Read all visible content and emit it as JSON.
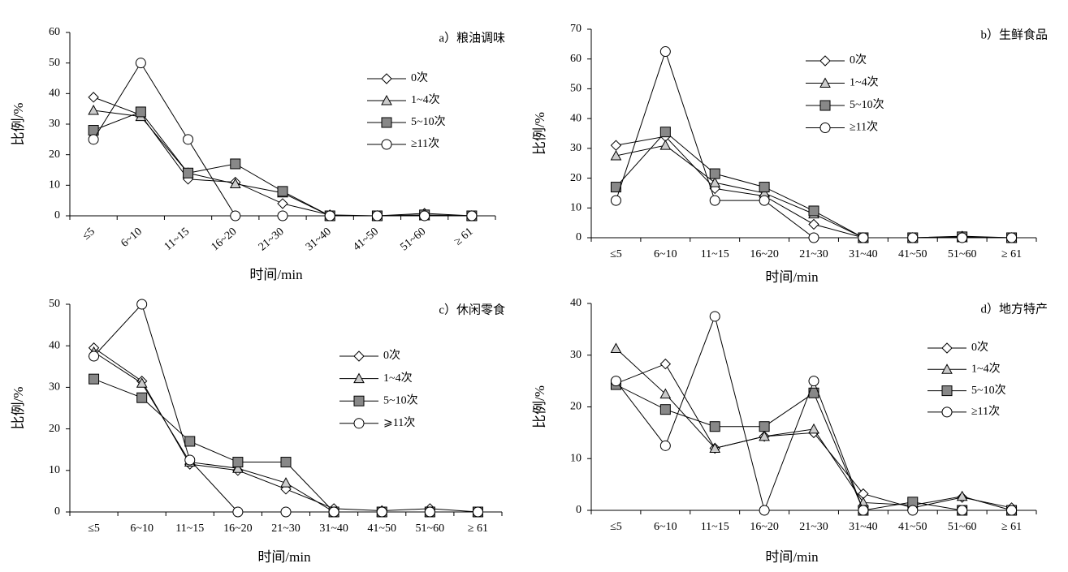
{
  "chart_data": [
    {
      "type": "line",
      "title": "a）粮油调味",
      "x_label": "时间/min",
      "y_label": "比例/%",
      "categories": [
        "≤5",
        "6~10",
        "11~15",
        "16~20",
        "21~30",
        "31~40",
        "41~50",
        "51~60",
        "≥ 61"
      ],
      "ylim": [
        0,
        60
      ],
      "yticks": [
        0,
        10,
        20,
        30,
        40,
        50,
        60
      ],
      "series": [
        {
          "name": "0次",
          "color": "#ffffff",
          "values": [
            38.8,
            33,
            12,
            11,
            4,
            0.3,
            0,
            0.8,
            0
          ]
        },
        {
          "name": "1~4次",
          "color": "#cccccc",
          "values": [
            34.5,
            32.5,
            14,
            10.5,
            7.5,
            0,
            0,
            0,
            0
          ]
        },
        {
          "name": "5~10次",
          "color": "#888888",
          "values": [
            28,
            34,
            14,
            17,
            8,
            0,
            0,
            0.3,
            0
          ]
        },
        {
          "name": "≥11次",
          "color": "#ffffff",
          "values": [
            25,
            50,
            25,
            0,
            0,
            0,
            0,
            0,
            0
          ]
        }
      ]
    },
    {
      "type": "line",
      "title": "b）生鲜食品",
      "x_label": "时间/min",
      "y_label": "比例/%",
      "categories": [
        "≤5",
        "6~10",
        "11~15",
        "16~20",
        "21~30",
        "31~40",
        "41~50",
        "51~60",
        "≥ 61"
      ],
      "ylim": [
        0,
        70
      ],
      "yticks": [
        0,
        10,
        20,
        30,
        40,
        50,
        60,
        70
      ],
      "series": [
        {
          "name": "0次",
          "color": "#ffffff",
          "values": [
            31,
            34,
            16.5,
            14,
            4.5,
            0,
            0,
            0.5,
            0
          ]
        },
        {
          "name": "1~4次",
          "color": "#cccccc",
          "values": [
            27.5,
            31,
            18.5,
            15,
            8,
            0,
            0,
            0,
            0
          ]
        },
        {
          "name": "5~10次",
          "color": "#888888",
          "values": [
            17,
            35.5,
            21.5,
            17,
            9,
            0,
            0,
            0.3,
            0
          ]
        },
        {
          "name": "≥11次",
          "color": "#ffffff",
          "values": [
            12.5,
            62.5,
            12.5,
            12.5,
            0,
            0,
            0,
            0,
            0
          ]
        }
      ]
    },
    {
      "type": "line",
      "title": "c）休闲零食",
      "x_label": "时间/min",
      "y_label": "比例/%",
      "categories": [
        "≤5",
        "6~10",
        "11~15",
        "16~20",
        "21~30",
        "31~40",
        "41~50",
        "51~60",
        "≥ 61"
      ],
      "ylim": [
        0,
        50
      ],
      "yticks": [
        0,
        10,
        20,
        30,
        40,
        50
      ],
      "series": [
        {
          "name": "0次",
          "color": "#ffffff",
          "values": [
            39.5,
            31.5,
            11.5,
            10,
            5.5,
            0.8,
            0.3,
            0.8,
            0
          ]
        },
        {
          "name": "1~4次",
          "color": "#cccccc",
          "values": [
            38.5,
            31,
            12,
            10.5,
            7,
            0,
            0,
            0,
            0
          ]
        },
        {
          "name": "5~10次",
          "color": "#888888",
          "values": [
            32,
            27.5,
            17,
            12,
            12,
            0,
            0,
            0,
            0
          ]
        },
        {
          "name": "⩾11次",
          "color": "#ffffff",
          "values": [
            37.5,
            50,
            12.5,
            0,
            0,
            0,
            0,
            0,
            0
          ]
        }
      ]
    },
    {
      "type": "line",
      "title": "d）地方特产",
      "x_label": "时间/min",
      "y_label": "比例/%",
      "categories": [
        "≤5",
        "6~10",
        "11~15",
        "16~20",
        "21~30",
        "31~40",
        "41~50",
        "51~60",
        "≥ 61"
      ],
      "ylim": [
        0,
        40
      ],
      "yticks": [
        0,
        10,
        20,
        30,
        40
      ],
      "series": [
        {
          "name": "0次",
          "color": "#ffffff",
          "values": [
            24.5,
            28.3,
            12,
            14.3,
            15,
            3.2,
            0.5,
            2.5,
            0.5
          ]
        },
        {
          "name": "1~4次",
          "color": "#cccccc",
          "values": [
            31.3,
            22.5,
            12,
            14.3,
            15.7,
            1.5,
            1,
            2.7,
            0
          ]
        },
        {
          "name": "5~10次",
          "color": "#888888",
          "values": [
            24.3,
            19.5,
            16.2,
            16.2,
            22.7,
            0,
            1.6,
            0,
            0
          ]
        },
        {
          "name": "≥11次",
          "color": "#ffffff",
          "values": [
            25,
            12.5,
            37.5,
            0,
            25,
            0,
            0,
            0,
            0
          ]
        }
      ]
    }
  ]
}
